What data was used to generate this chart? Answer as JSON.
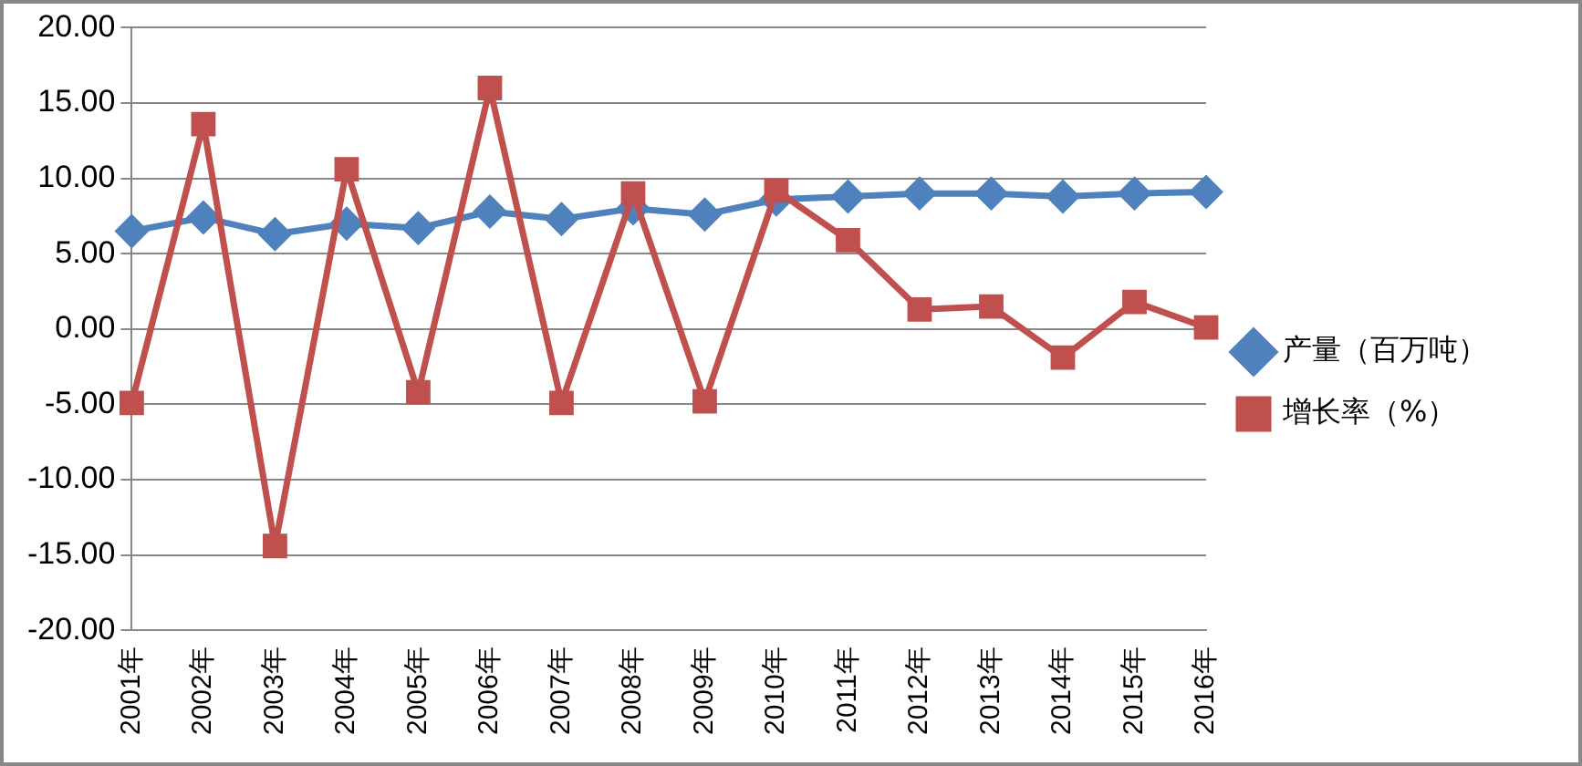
{
  "chart_data": {
    "type": "line",
    "categories": [
      "2001年",
      "2002年",
      "2003年",
      "2004年",
      "2005年",
      "2006年",
      "2007年",
      "2008年",
      "2009年",
      "2010年",
      "2011年",
      "2012年",
      "2013年",
      "2014年",
      "2015年",
      "2016年"
    ],
    "series": [
      {
        "name": "产量（百万吨）",
        "color": "#4f81bd",
        "marker": "diamond",
        "values": [
          6.5,
          7.4,
          6.3,
          7.0,
          6.7,
          7.8,
          7.3,
          8.0,
          7.6,
          8.6,
          8.8,
          9.0,
          9.0,
          8.8,
          9.0,
          9.1
        ]
      },
      {
        "name": "增长率（%）",
        "color": "#c0504d",
        "marker": "square",
        "values": [
          -4.9,
          13.6,
          -14.4,
          10.6,
          -4.2,
          16.0,
          -4.9,
          9.0,
          -4.8,
          9.2,
          5.9,
          1.3,
          1.5,
          -1.9,
          1.8,
          0.1
        ]
      }
    ],
    "ylim": [
      -20,
      20
    ],
    "yticks": [
      {
        "value": -20,
        "label": "-20.00"
      },
      {
        "value": -15,
        "label": "-15.00"
      },
      {
        "value": -10,
        "label": "-10.00"
      },
      {
        "value": -5,
        "label": "-5.00"
      },
      {
        "value": 0,
        "label": "0.00"
      },
      {
        "value": 5,
        "label": "5.00"
      },
      {
        "value": 10,
        "label": "10.00"
      },
      {
        "value": 15,
        "label": "15.00"
      },
      {
        "value": 20,
        "label": "20.00"
      }
    ],
    "grid": "y",
    "legend": "right",
    "line_style": "solid"
  }
}
